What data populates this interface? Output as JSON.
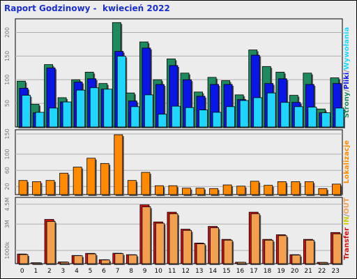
{
  "title": "Raport Godzinowy -  kwiecień 2022",
  "colors": {
    "strony": "#1e8a5e",
    "pliki": "#0a16e6",
    "wywolania": "#1ed6ff",
    "lokalizacje": "#ff8a00",
    "transfer_in": "#d41010",
    "transfer_out": "#f2a050"
  },
  "chart_data": [
    {
      "type": "bar",
      "panel": "requests",
      "categories": [
        "0",
        "1",
        "2",
        "3",
        "4",
        "5",
        "6",
        "7",
        "8",
        "9",
        "10",
        "11",
        "12",
        "13",
        "14",
        "15",
        "16",
        "17",
        "18",
        "19",
        "20",
        "21",
        "22",
        "23"
      ],
      "ylim": [
        0,
        220
      ],
      "yticks": [
        "50",
        "100",
        "150",
        "200"
      ],
      "ytick_values": [
        50,
        100,
        150,
        200
      ],
      "series": [
        {
          "name": "Strony",
          "values": [
            97,
            48,
            132,
            62,
            100,
            116,
            92,
            221,
            72,
            180,
            100,
            144,
            114,
            74,
            105,
            98,
            68,
            163,
            128,
            116,
            67,
            114,
            38,
            104
          ]
        },
        {
          "name": "Pliki",
          "values": [
            82,
            30,
            125,
            53,
            95,
            102,
            80,
            160,
            55,
            167,
            90,
            130,
            100,
            65,
            90,
            90,
            58,
            152,
            92,
            102,
            52,
            90,
            30,
            92
          ]
        },
        {
          "name": "Wywołania",
          "values": [
            67,
            31,
            40,
            53,
            78,
            83,
            80,
            150,
            43,
            68,
            27,
            44,
            41,
            36,
            31,
            43,
            56,
            62,
            72,
            52,
            43,
            42,
            30,
            40
          ]
        }
      ],
      "legend": [
        "Strony",
        "Pliki",
        "Wywołania"
      ],
      "legend_separator": "/"
    },
    {
      "type": "bar",
      "panel": "sites",
      "categories": [
        "0",
        "1",
        "2",
        "3",
        "4",
        "5",
        "6",
        "7",
        "8",
        "9",
        "10",
        "11",
        "12",
        "13",
        "14",
        "15",
        "16",
        "17",
        "18",
        "19",
        "20",
        "21",
        "22",
        "23"
      ],
      "ylim": [
        0,
        150
      ],
      "yticks": [
        "20",
        "60",
        "100",
        "150"
      ],
      "ytick_values": [
        20,
        60,
        100,
        150
      ],
      "series": [
        {
          "name": "Lokalizacje",
          "values": [
            35,
            32,
            35,
            53,
            68,
            90,
            77,
            148,
            35,
            55,
            22,
            22,
            16,
            16,
            15,
            24,
            21,
            33,
            23,
            32,
            32,
            32,
            15,
            26
          ]
        }
      ],
      "legend": [
        "Lokalizacje"
      ]
    },
    {
      "type": "bar",
      "panel": "transfer",
      "categories": [
        "0",
        "1",
        "2",
        "3",
        "4",
        "5",
        "6",
        "7",
        "8",
        "9",
        "10",
        "11",
        "12",
        "13",
        "14",
        "15",
        "16",
        "17",
        "18",
        "19",
        "20",
        "21",
        "22",
        "23"
      ],
      "ylim": [
        0,
        4700000
      ],
      "yticks": [
        "1000k",
        "3M",
        "4.5M"
      ],
      "ytick_values": [
        1000000,
        3000000,
        4500000
      ],
      "series": [
        {
          "name": "Transfer IN",
          "values": [
            730000,
            70000,
            3350000,
            130000,
            620000,
            780000,
            300000,
            790000,
            680000,
            4450000,
            3160000,
            3900000,
            2610000,
            1560000,
            2820000,
            1840000,
            110000,
            3900000,
            1840000,
            2190000,
            680000,
            1840000,
            100000,
            2360000
          ]
        },
        {
          "name": "Transfer OUT",
          "values": [
            690000,
            60000,
            3200000,
            110000,
            600000,
            740000,
            280000,
            760000,
            660000,
            4300000,
            3060000,
            3780000,
            2520000,
            1500000,
            2720000,
            1780000,
            100000,
            3780000,
            1780000,
            2120000,
            650000,
            1780000,
            90000,
            2260000
          ]
        }
      ],
      "legend": [
        "Transfer",
        "IN",
        "OUT"
      ],
      "legend_separator": "/"
    }
  ]
}
